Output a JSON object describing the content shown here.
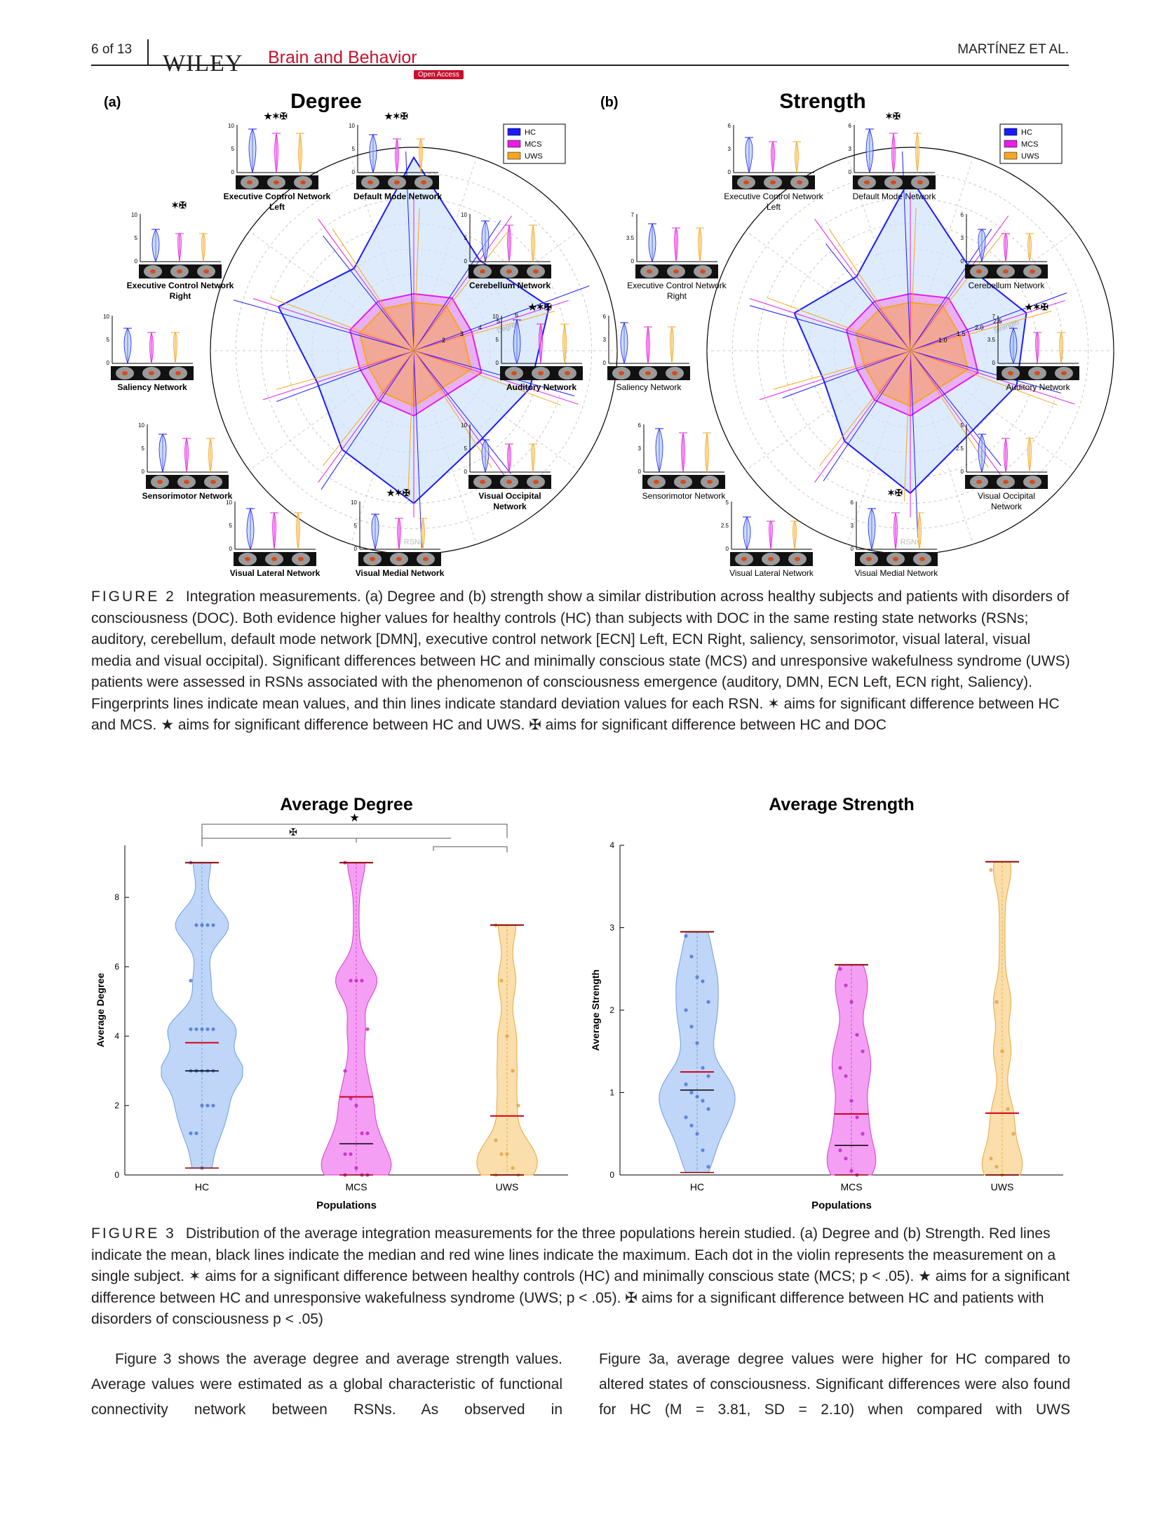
{
  "header": {
    "page_number": "6 of 13",
    "publisher": "WILEY",
    "journal": "Brain and Behavior",
    "badge": "Open Access",
    "authors": "MARTÍNEZ ET AL."
  },
  "figure2": {
    "panel_a_label": "(a)",
    "panel_a_title": "Degree",
    "panel_b_label": "(b)",
    "panel_b_title": "Strength",
    "legend": [
      "HC",
      "MCS",
      "UWS"
    ],
    "legend_colors": [
      "#1a1aff",
      "#e61ee6",
      "#f5a623"
    ],
    "radar_axis_label_a": "Degree",
    "radar_axis_label_b": "Strength",
    "radar_center_label": "RSNs",
    "radar_ticks_a": [
      "2",
      "3",
      "4",
      "5",
      "6",
      "7"
    ],
    "radar_ticks_b": [
      "1.0",
      "1.5",
      "2.0",
      "2.5"
    ],
    "networks_a": [
      {
        "name": "Executive Control Network Left",
        "sig": "★✶✠",
        "ymax": "10",
        "ymid": "5"
      },
      {
        "name": "Default Mode Network",
        "sig": "★✶✠",
        "ymax": "10",
        "ymid": "5"
      },
      {
        "name": "Executive Control Network Right",
        "sig": "✶✠",
        "ymax": "10",
        "ymid": "5"
      },
      {
        "name": "Cerebellum Network",
        "sig": "",
        "ymax": "10",
        "ymid": "5"
      },
      {
        "name": "Saliency Network",
        "sig": "",
        "ymax": "10",
        "ymid": "5"
      },
      {
        "name": "Auditory Network",
        "sig": "★✶✠",
        "ymax": "10",
        "ymid": "5"
      },
      {
        "name": "Sensorimotor Network",
        "sig": "",
        "ymax": "10",
        "ymid": "5"
      },
      {
        "name": "Visual Occipital Network",
        "sig": "",
        "ymax": "10",
        "ymid": "5"
      },
      {
        "name": "Visual Lateral Network",
        "sig": "",
        "ymax": "10",
        "ymid": "5"
      },
      {
        "name": "Visual Medial Network",
        "sig": "★✶✠",
        "ymax": "10",
        "ymid": "5"
      }
    ],
    "networks_b": [
      {
        "name": "Executive Control Network Left",
        "sig": "",
        "ymax": "6",
        "ymid": "3"
      },
      {
        "name": "Default Mode Network",
        "sig": "✶✠",
        "ymax": "6",
        "ymid": "3"
      },
      {
        "name": "Executive Control Network Right",
        "sig": "",
        "ymax": "7",
        "ymid": "3.5"
      },
      {
        "name": "Cerebellum Network",
        "sig": "",
        "ymax": "6",
        "ymid": "3"
      },
      {
        "name": "Saliency Network",
        "sig": "",
        "ymax": "6",
        "ymid": "3"
      },
      {
        "name": "Auditory Network",
        "sig": "★✶✠",
        "ymax": "7",
        "ymid": "3.5"
      },
      {
        "name": "Sensorimotor Network",
        "sig": "",
        "ymax": "6",
        "ymid": "3"
      },
      {
        "name": "Visual Occipital Network",
        "sig": "",
        "ymax": "5",
        "ymid": "2.5"
      },
      {
        "name": "Visual Lateral Network",
        "sig": "",
        "ymax": "5",
        "ymid": "2.5"
      },
      {
        "name": "Visual Medial Network",
        "sig": "✶✠",
        "ymax": "6",
        "ymid": "3"
      }
    ],
    "caption_label": "FIGURE 2",
    "caption_text": "Integration measurements. (a) Degree and (b) strength show a similar distribution across healthy subjects and patients with disorders of consciousness (DOC). Both evidence higher values for healthy controls (HC) than subjects with DOC in the same resting state networks (RSNs; auditory, cerebellum, default mode network [DMN], executive control network [ECN] Left, ECN Right, saliency, sensorimotor, visual lateral, visual media and visual occipital). Significant differences between HC and minimally conscious state (MCS) and unresponsive wakefulness syndrome (UWS) patients were assessed in RSNs associated with the phenomenon of consciousness emergence (auditory, DMN, ECN Left, ECN right, Saliency). Fingerprints lines indicate mean values, and thin lines indicate standard deviation values for each RSN. ✶ aims for significant difference between HC and MCS. ★ aims for significant difference between HC and UWS. ✠ aims for significant difference between HC and DOC"
  },
  "figure3": {
    "caption_label": "FIGURE 3",
    "caption_text": "Distribution of the average integration measurements for the three populations herein studied. (a) Degree and (b) Strength. Red lines indicate the mean, black lines indicate the median and red wine lines indicate the maximum. Each dot in the violin represents the measurement on a single subject. ✶ aims for a significant difference between healthy controls (HC) and minimally conscious state (MCS; p < .05). ★ aims for a significant difference between HC and unresponsive wakefulness syndrome (UWS; p < .05). ✠ aims for a significant difference between HC and patients with disorders of consciousness p < .05)",
    "sig_star": "★",
    "sig_cross": "✠"
  },
  "chart_data": [
    {
      "type": "violin",
      "title": "Average Degree",
      "xlabel": "Populations",
      "ylabel": "Average Degree",
      "categories": [
        "HC",
        "MCS",
        "UWS"
      ],
      "colors": [
        "#a9c8f5",
        "#f27ff0",
        "#f8d38f"
      ],
      "ylim": [
        0,
        9.5
      ],
      "yticks": [
        "0",
        "2",
        "4",
        "6",
        "8"
      ],
      "mean": [
        3.81,
        2.25,
        1.7
      ],
      "median": [
        3.0,
        0.9,
        0.0
      ],
      "max": [
        9.0,
        9.0,
        7.2
      ],
      "min": [
        0.2,
        0.0,
        0.0
      ],
      "points": [
        [
          9.0,
          7.2,
          7.2,
          7.2,
          7.2,
          5.6,
          4.2,
          4.2,
          4.2,
          4.2,
          4.2,
          3.0,
          3.0,
          3.0,
          3.0,
          3.0,
          3.0,
          2.0,
          2.0,
          2.0,
          1.2,
          1.2,
          0.2
        ],
        [
          9.0,
          5.6,
          5.6,
          5.6,
          4.2,
          3.0,
          2.2,
          2.0,
          1.2,
          1.2,
          0.6,
          0.6,
          0.2,
          0.0,
          0.0,
          0.0
        ],
        [
          7.2,
          5.6,
          4.0,
          3.0,
          2.0,
          1.0,
          0.6,
          0.6,
          0.2,
          0.0,
          0.0
        ]
      ]
    },
    {
      "type": "violin",
      "title": "Average Strength",
      "xlabel": "Populations",
      "ylabel": "Average Strength",
      "categories": [
        "HC",
        "MCS",
        "UWS"
      ],
      "colors": [
        "#a9c8f5",
        "#f27ff0",
        "#f8d38f"
      ],
      "ylim": [
        0,
        4
      ],
      "yticks": [
        "0",
        "1",
        "2",
        "3",
        "4"
      ],
      "mean": [
        1.25,
        0.74,
        0.75
      ],
      "median": [
        1.03,
        0.36,
        0.0
      ],
      "max": [
        2.95,
        2.55,
        3.8
      ],
      "min": [
        0.03,
        0.0,
        0.0
      ],
      "points": [
        [
          2.9,
          2.65,
          2.4,
          2.35,
          2.1,
          2.0,
          1.8,
          1.6,
          1.3,
          1.2,
          1.1,
          1.0,
          0.95,
          0.9,
          0.8,
          0.7,
          0.6,
          0.5,
          0.3,
          0.1
        ],
        [
          2.5,
          2.3,
          2.1,
          1.7,
          1.5,
          1.3,
          1.2,
          0.9,
          0.7,
          0.5,
          0.3,
          0.2,
          0.05,
          0.0
        ],
        [
          3.7,
          2.1,
          1.5,
          0.8,
          0.5,
          0.2,
          0.1,
          0.0
        ]
      ]
    }
  ],
  "body": {
    "col1": "Figure 3 shows the average degree and average strength values. Average values were estimated as a global characteristic of functional connectivity network between RSNs. As observed in",
    "col2": "Figure 3a, average degree values were higher for HC compared to altered states of consciousness. Significant differences were also found for HC (M = 3.81, SD = 2.10) when compared with UWS"
  }
}
